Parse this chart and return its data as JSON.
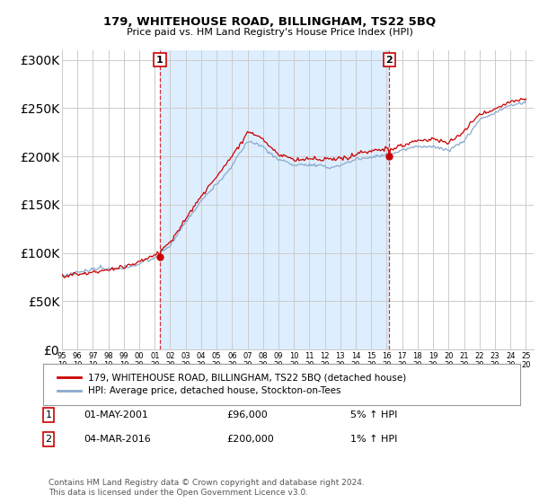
{
  "title": "179, WHITEHOUSE ROAD, BILLINGHAM, TS22 5BQ",
  "subtitle": "Price paid vs. HM Land Registry's House Price Index (HPI)",
  "red_label": "179, WHITEHOUSE ROAD, BILLINGHAM, TS22 5BQ (detached house)",
  "blue_label": "HPI: Average price, detached house, Stockton-on-Tees",
  "annotation1_date": "01-MAY-2001",
  "annotation1_price": 96000,
  "annotation1_hpi": "5% ↑ HPI",
  "annotation2_date": "04-MAR-2016",
  "annotation2_price": 200000,
  "annotation2_hpi": "1% ↑ HPI",
  "footer": "Contains HM Land Registry data © Crown copyright and database right 2024.\nThis data is licensed under the Open Government Licence v3.0.",
  "ylim_min": 0,
  "ylim_max": 310000,
  "background_color": "#ffffff",
  "plot_bg_color": "#ffffff",
  "shade_color": "#ddeeff",
  "red_color": "#cc0000",
  "blue_color": "#88aacc",
  "vline_color": "#cc0000",
  "grid_color": "#cccccc",
  "sale1_year": 2001.33,
  "sale1_value": 96000,
  "sale2_year": 2016.17,
  "sale2_value": 200000
}
